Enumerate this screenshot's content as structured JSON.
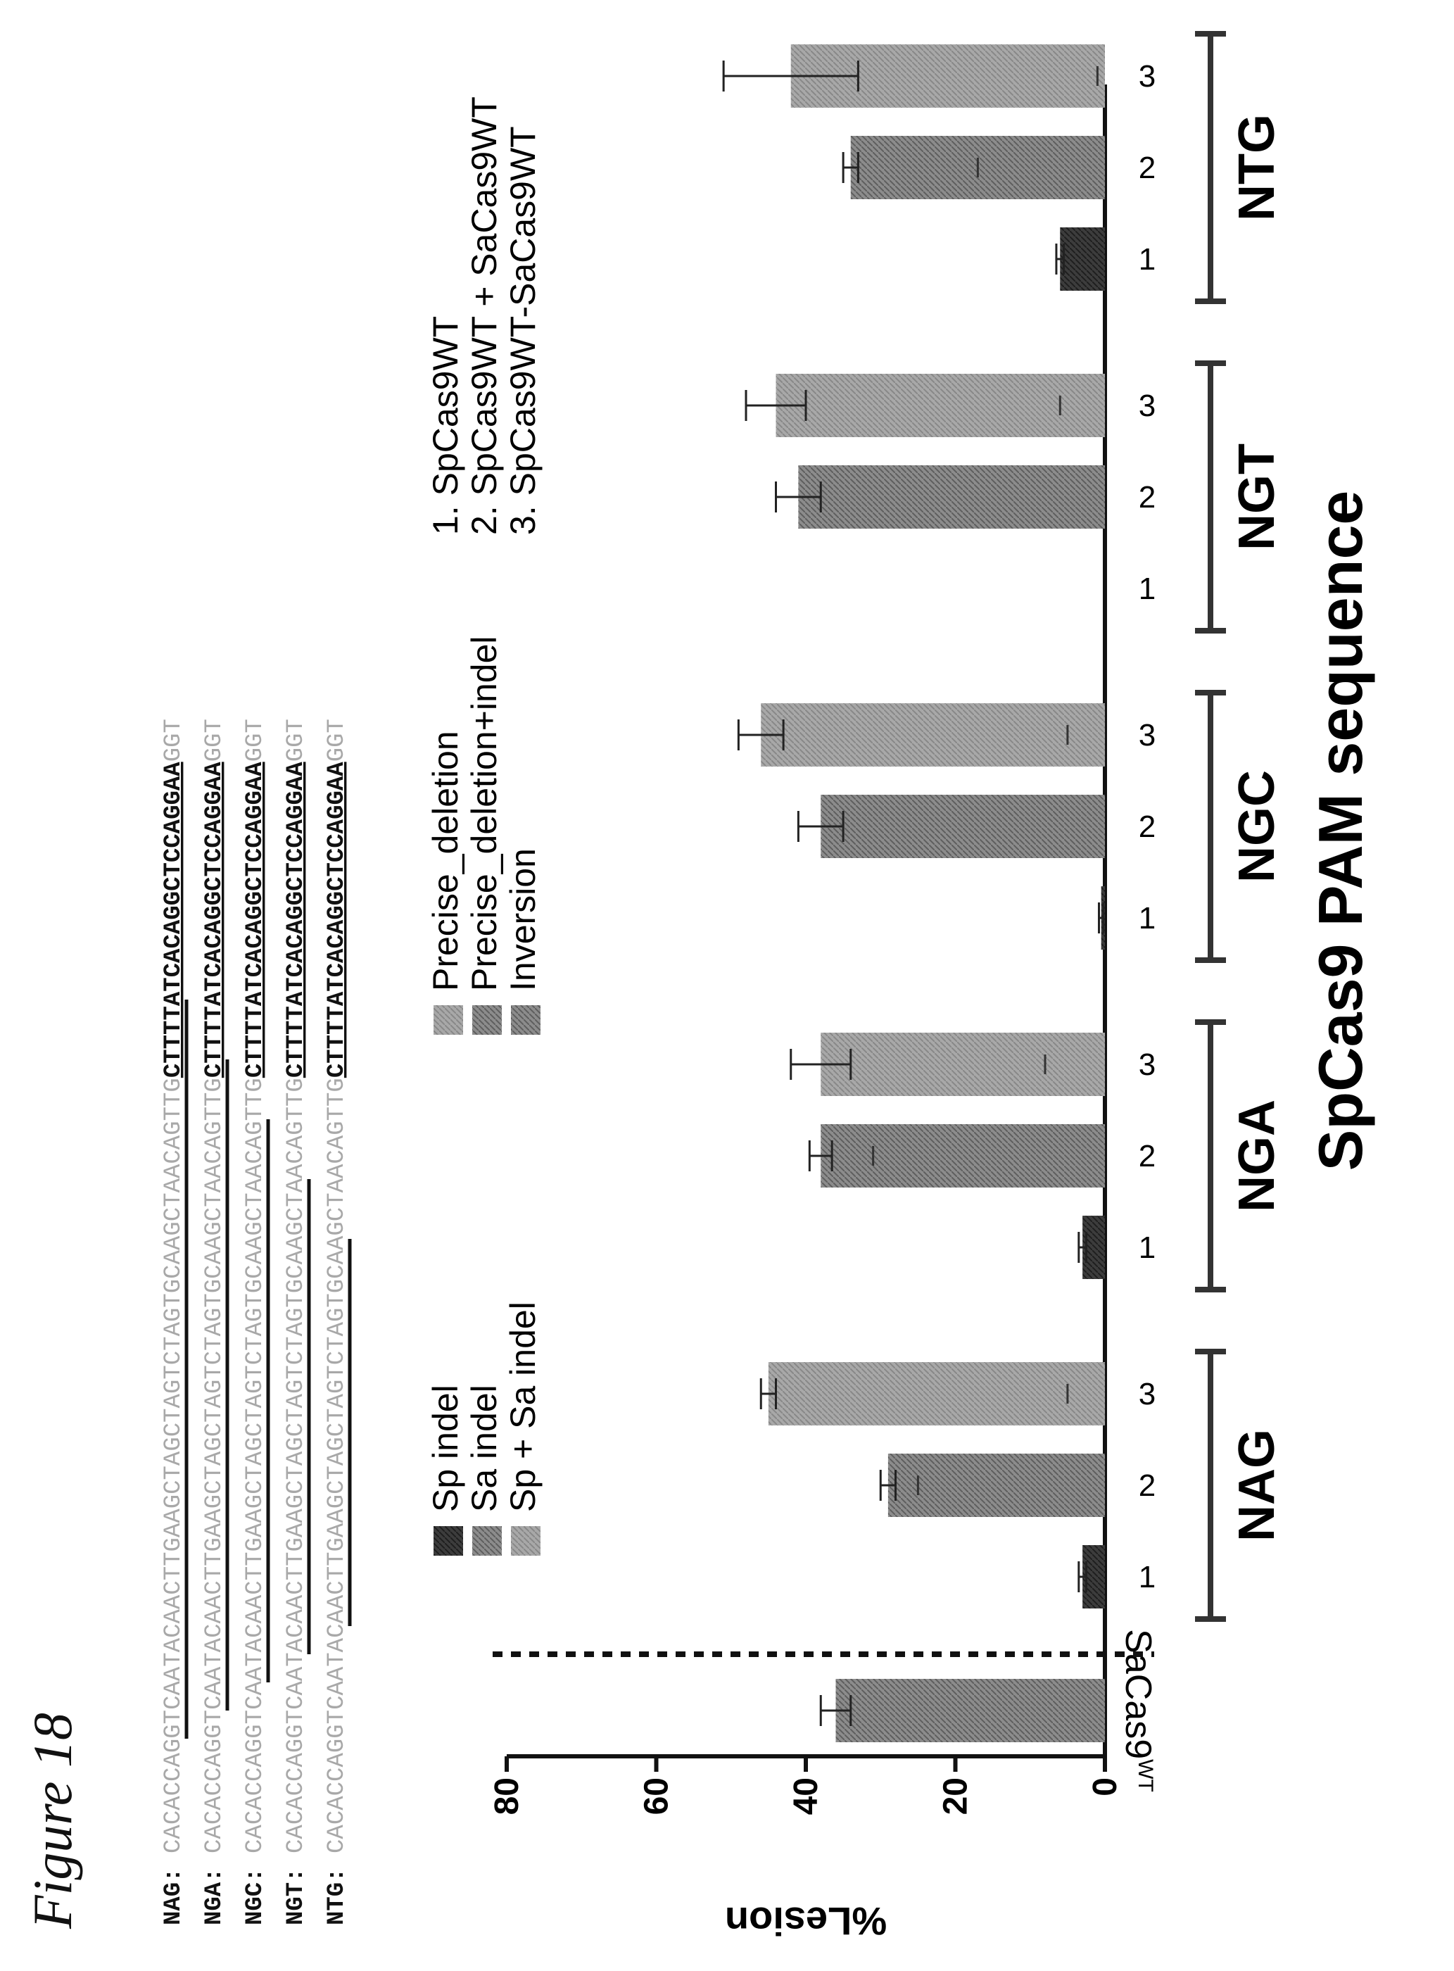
{
  "figure_label": "Figure 18",
  "sequences": [
    {
      "pam": "NAG:",
      "grey1": "CACACCAGGTCAATACAACTT",
      "grey2": "GAAGCTAGCTAGTCTAGTGCAAGCTAACAGTTG",
      "bold": "CTTTTATCACAGGCTCCAGGAA",
      "tail": "GGT"
    },
    {
      "pam": "NGA:",
      "grey1": "CACACCAGGTCAATACAACTT",
      "grey2": "GAAGCTAGCTAGTCTAGTGCAAGCTAACAGTTG",
      "bold": "CTTTTATCACAGGCTCCAGGAA",
      "tail": "GGT"
    },
    {
      "pam": "NGC:",
      "grey1": "CACACCAGGTCAATACAACTT",
      "grey2": "GAAGCTAGCTAGTCTAGTGCAAGCTAACAGTTG",
      "bold": "CTTTTATCACAGGCTCCAGGAA",
      "tail": "GGT"
    },
    {
      "pam": "NGT:",
      "grey1": "CACACCAGGTCAATACAACTT",
      "grey2": "GAAGCTAGCTAGTCTAGTGCAAGCTAACAGTTG",
      "bold": "CTTTTATCACAGGCTCCAGGAA",
      "tail": "GGT"
    },
    {
      "pam": "NTG:",
      "grey1": "CACACCAGGTCAATACAACTT",
      "grey2": "GAAGCTAGCTAGTCTAGTGCAAGCTAACAGTTG",
      "bold": "CTTTTATCACAGGCTCCAGGAA",
      "tail": "GGT"
    }
  ],
  "legend": {
    "col1": [
      "Sp indel",
      "Sa indel",
      "Sp + Sa indel"
    ],
    "col2": [
      "Precise_deletion",
      "Precise_deletion+indel",
      "Inversion"
    ],
    "col3": [
      "1. SpCas9WT",
      "2. SpCas9WT + SaCas9WT",
      "3. SpCas9WT-SaCas9WT"
    ]
  },
  "colors": {
    "sp_indel": "#3a3a3a",
    "sa_indel": "#5a5a5a",
    "sp_sa_indel": "#6e6e6e",
    "precise_deletion": "#9a9a9a",
    "precise_deletion_indel": "#7a7a7a",
    "inversion": "#8a8a8a",
    "axis": "#222222",
    "grey_seq": "#a8a8a8"
  },
  "chart_data": {
    "type": "bar",
    "ylabel": "%Lesion",
    "xlabel": "SpCas9 PAM sequence",
    "ylim": [
      0,
      80
    ],
    "yticks": [
      0,
      20,
      40,
      60,
      80
    ],
    "control": {
      "label": "SaCas9",
      "superscript": "WT",
      "value": 36,
      "error": 2
    },
    "groups": [
      "NAG",
      "NGA",
      "NGC",
      "NGT",
      "NTG"
    ],
    "subcategories": [
      "1",
      "2",
      "3"
    ],
    "series": [
      {
        "group": "NAG",
        "bars": [
          {
            "cat": "1",
            "value": 3,
            "error": 0.5,
            "marks": []
          },
          {
            "cat": "2",
            "value": 29,
            "error": 1,
            "marks": [
              25
            ]
          },
          {
            "cat": "3",
            "value": 45,
            "error": 1,
            "marks": [
              5
            ]
          }
        ]
      },
      {
        "group": "NGA",
        "bars": [
          {
            "cat": "1",
            "value": 3,
            "error": 0.5,
            "marks": []
          },
          {
            "cat": "2",
            "value": 38,
            "error": 1.5,
            "marks": [
              31
            ]
          },
          {
            "cat": "3",
            "value": 38,
            "error": 4,
            "marks": [
              8
            ]
          }
        ]
      },
      {
        "group": "NGC",
        "bars": [
          {
            "cat": "1",
            "value": 0.5,
            "error": 0.3,
            "marks": []
          },
          {
            "cat": "2",
            "value": 38,
            "error": 3,
            "marks": []
          },
          {
            "cat": "3",
            "value": 46,
            "error": 3,
            "marks": [
              5
            ]
          }
        ]
      },
      {
        "group": "NGT",
        "bars": [
          {
            "cat": "1",
            "value": 0,
            "error": 0,
            "marks": []
          },
          {
            "cat": "2",
            "value": 41,
            "error": 3,
            "marks": []
          },
          {
            "cat": "3",
            "value": 44,
            "error": 4,
            "marks": [
              6
            ]
          }
        ]
      },
      {
        "group": "NTG",
        "bars": [
          {
            "cat": "1",
            "value": 6,
            "error": 0.5,
            "marks": []
          },
          {
            "cat": "2",
            "value": 34,
            "error": 1,
            "marks": [
              17
            ]
          },
          {
            "cat": "3",
            "value": 42,
            "error": 9,
            "marks": [
              1
            ]
          }
        ]
      }
    ]
  }
}
